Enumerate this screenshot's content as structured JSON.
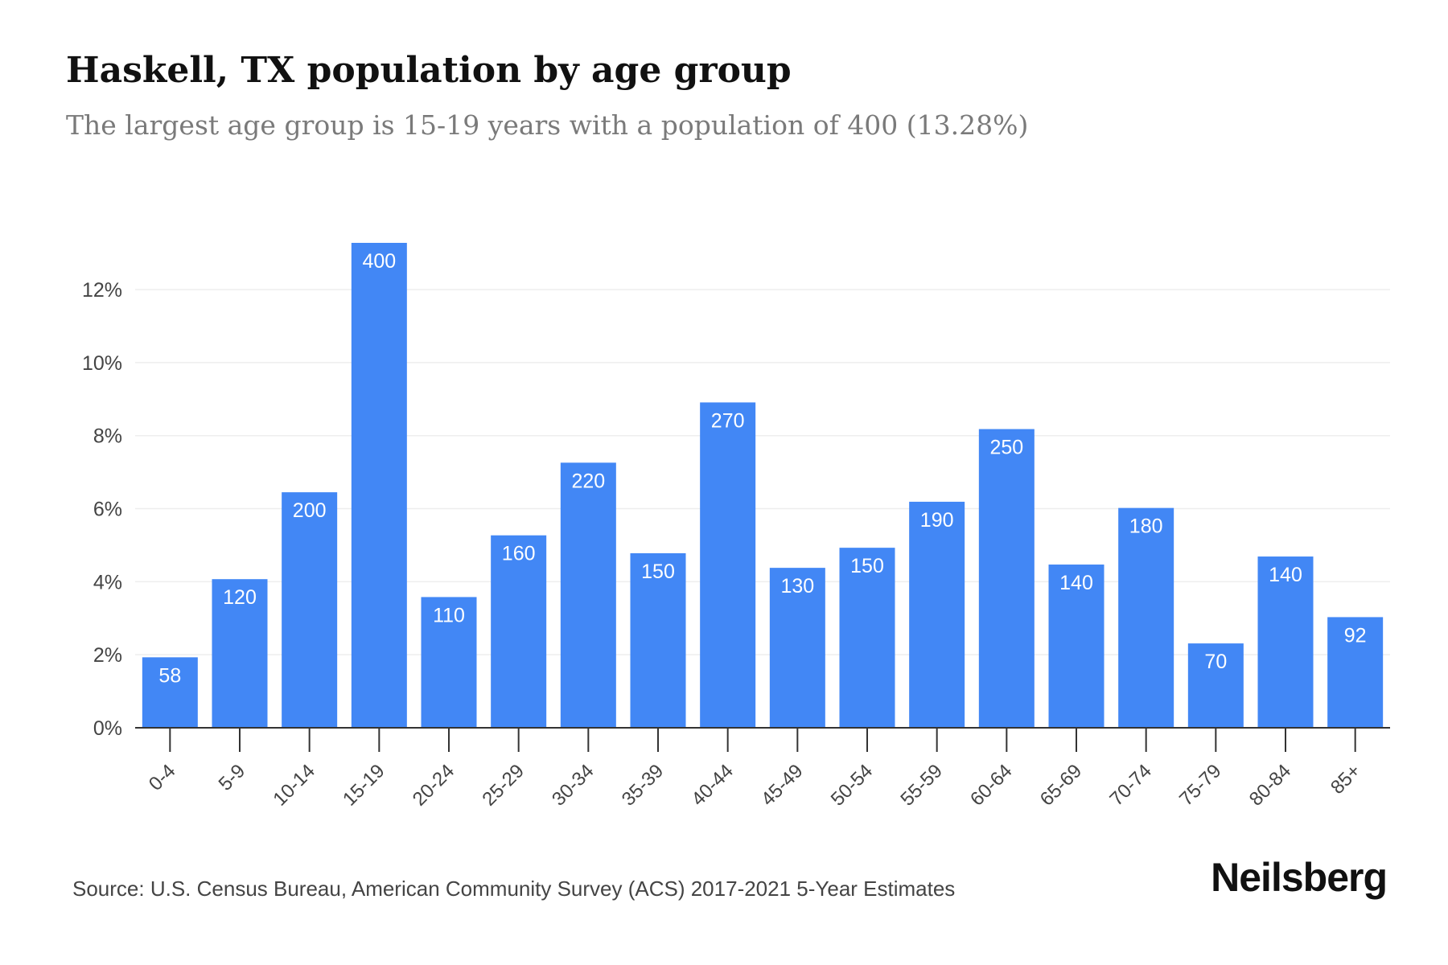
{
  "header": {
    "title": "Haskell, TX population by age group",
    "subtitle": "The largest age group is 15-19 years with a population of 400 (13.28%)"
  },
  "chart_data": {
    "type": "bar",
    "categories": [
      "0-4",
      "5-9",
      "10-14",
      "15-19",
      "20-24",
      "25-29",
      "30-34",
      "35-39",
      "40-44",
      "45-49",
      "50-54",
      "55-59",
      "60-64",
      "65-69",
      "70-74",
      "75-79",
      "80-84",
      "85+"
    ],
    "values": [
      1.93,
      4.07,
      6.45,
      13.28,
      3.58,
      5.27,
      7.26,
      4.78,
      8.91,
      4.38,
      4.93,
      6.19,
      8.18,
      4.47,
      6.02,
      2.31,
      4.69,
      3.03
    ],
    "data_labels": [
      "58",
      "120",
      "200",
      "400",
      "110",
      "160",
      "220",
      "150",
      "270",
      "130",
      "150",
      "190",
      "250",
      "140",
      "180",
      "70",
      "140",
      "92"
    ],
    "y_ticks": [
      0,
      2,
      4,
      6,
      8,
      10,
      12
    ],
    "y_tick_labels": [
      "0%",
      "2%",
      "4%",
      "6%",
      "8%",
      "10%",
      "12%"
    ],
    "ylim": [
      0,
      13.28
    ],
    "grid": true,
    "bar_color": "#4287f5",
    "xlabel": "",
    "ylabel": ""
  },
  "footer": {
    "source": "Source: U.S. Census Bureau, American Community Survey (ACS) 2017-2021 5-Year Estimates",
    "brand": "Neilsberg"
  }
}
